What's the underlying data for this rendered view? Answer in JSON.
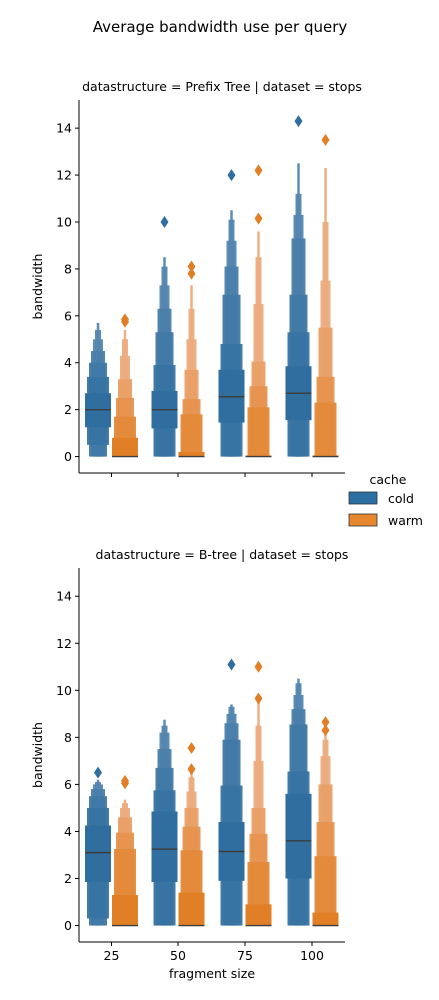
{
  "figure_title": "Average bandwidth use per query",
  "legend": {
    "title": "cache",
    "placement": "right",
    "entries": [
      {
        "label": "cold",
        "color": "#2c6fa3"
      },
      {
        "label": "warm",
        "color": "#e6862d"
      }
    ]
  },
  "colors": {
    "cold_shades": [
      "#2f6e9e",
      "#3874a2",
      "#4179a6",
      "#4a80ab",
      "#5486b0"
    ],
    "warm_shades": [
      "#e07f26",
      "#e3893a",
      "#e6944f",
      "#e9a067",
      "#ecac7e"
    ],
    "median_line": "#3d3d3d"
  },
  "chart_data": [
    {
      "type": "boxen",
      "title": "datastructure = Prefix Tree | dataset = stops",
      "xlabel": "",
      "ylabel": "bandwidth",
      "categories": [
        "25",
        "50",
        "75",
        "100"
      ],
      "show_xtick_labels": false,
      "ylim": [
        -0.7,
        15.2
      ],
      "yticks": [
        0,
        2,
        4,
        6,
        8,
        10,
        12,
        14
      ],
      "grid": false,
      "series": [
        {
          "name": "cold",
          "boxes": [
            {
              "median": 2.0,
              "levels": [
                [
                  1.25,
                  2.7
                ],
                [
                  0.5,
                  3.4
                ],
                [
                  0.0,
                  4.0
                ],
                [
                  0.0,
                  4.5
                ],
                [
                  0.0,
                  5.0
                ],
                [
                  0.0,
                  5.4
                ],
                [
                  0.0,
                  5.7
                ]
              ],
              "outliers": []
            },
            {
              "median": 2.0,
              "levels": [
                [
                  1.2,
                  2.8
                ],
                [
                  0.0,
                  3.9
                ],
                [
                  0.0,
                  5.3
                ],
                [
                  0.0,
                  6.3
                ],
                [
                  0.0,
                  7.3
                ],
                [
                  0.0,
                  8.1
                ],
                [
                  0.0,
                  8.5
                ]
              ],
              "outliers": [
                10.0
              ]
            },
            {
              "median": 2.55,
              "levels": [
                [
                  1.45,
                  3.7
                ],
                [
                  0.0,
                  4.8
                ],
                [
                  0.0,
                  6.9
                ],
                [
                  0.0,
                  8.1
                ],
                [
                  0.0,
                  9.2
                ],
                [
                  0.0,
                  10.1
                ],
                [
                  0.0,
                  10.5
                ]
              ],
              "outliers": [
                12.0
              ]
            },
            {
              "median": 2.7,
              "levels": [
                [
                  1.55,
                  3.85
                ],
                [
                  0.0,
                  5.3
                ],
                [
                  0.0,
                  6.9
                ],
                [
                  0.0,
                  9.3
                ],
                [
                  0.0,
                  10.3
                ],
                [
                  0.0,
                  11.2
                ],
                [
                  0.0,
                  12.5
                ]
              ],
              "outliers": [
                14.3
              ]
            }
          ]
        },
        {
          "name": "warm",
          "boxes": [
            {
              "median": 0.0,
              "levels": [
                [
                  0.0,
                  0.8
                ],
                [
                  0.0,
                  1.7
                ],
                [
                  0.0,
                  2.5
                ],
                [
                  0.0,
                  3.3
                ],
                [
                  0.0,
                  4.3
                ],
                [
                  0.0,
                  5.0
                ],
                [
                  0.0,
                  5.4
                ]
              ],
              "outliers": [
                5.75,
                5.85
              ]
            },
            {
              "median": 0.0,
              "levels": [
                [
                  0.0,
                  0.2
                ],
                [
                  0.0,
                  1.8
                ],
                [
                  0.0,
                  2.45
                ],
                [
                  0.0,
                  3.7
                ],
                [
                  0.0,
                  5.0
                ],
                [
                  0.0,
                  6.3
                ],
                [
                  0.0,
                  7.3
                ]
              ],
              "outliers": [
                7.8,
                8.1
              ]
            },
            {
              "median": 0.0,
              "levels": [
                [
                  0.0,
                  0.05
                ],
                [
                  0.0,
                  2.1
                ],
                [
                  0.0,
                  3.0
                ],
                [
                  0.0,
                  4.05
                ],
                [
                  0.0,
                  6.5
                ],
                [
                  0.0,
                  8.5
                ],
                [
                  0.0,
                  9.6
                ]
              ],
              "outliers": [
                10.15,
                12.2
              ]
            },
            {
              "median": 0.0,
              "levels": [
                [
                  0.0,
                  0.05
                ],
                [
                  0.0,
                  2.3
                ],
                [
                  0.0,
                  3.4
                ],
                [
                  0.0,
                  5.5
                ],
                [
                  0.0,
                  7.5
                ],
                [
                  0.0,
                  10.0
                ],
                [
                  0.0,
                  12.3
                ]
              ],
              "outliers": [
                13.5
              ]
            }
          ]
        }
      ]
    },
    {
      "type": "boxen",
      "title": "datastructure = B-tree | dataset = stops",
      "xlabel": "fragment size",
      "ylabel": "bandwidth",
      "categories": [
        "25",
        "50",
        "75",
        "100"
      ],
      "show_xtick_labels": true,
      "ylim": [
        -0.7,
        15.2
      ],
      "yticks": [
        0,
        2,
        4,
        6,
        8,
        10,
        12,
        14
      ],
      "grid": false,
      "series": [
        {
          "name": "cold",
          "boxes": [
            {
              "median": 3.1,
              "levels": [
                [
                  1.85,
                  4.25
                ],
                [
                  0.3,
                  5.0
                ],
                [
                  0.0,
                  5.5
                ],
                [
                  0.0,
                  5.8
                ],
                [
                  0.0,
                  6.0
                ],
                [
                  0.0,
                  6.1
                ],
                [
                  0.0,
                  6.2
                ]
              ],
              "outliers": [
                6.5
              ]
            },
            {
              "median": 3.25,
              "levels": [
                [
                  1.85,
                  4.85
                ],
                [
                  0.0,
                  5.75
                ],
                [
                  0.0,
                  6.7
                ],
                [
                  0.0,
                  7.5
                ],
                [
                  0.0,
                  8.2
                ],
                [
                  0.0,
                  8.5
                ],
                [
                  0.0,
                  8.75
                ]
              ],
              "outliers": []
            },
            {
              "median": 3.15,
              "levels": [
                [
                  1.9,
                  4.4
                ],
                [
                  0.0,
                  5.95
                ],
                [
                  0.0,
                  7.9
                ],
                [
                  0.0,
                  8.6
                ],
                [
                  0.0,
                  9.0
                ],
                [
                  0.0,
                  9.3
                ],
                [
                  0.0,
                  9.4
                ]
              ],
              "outliers": [
                11.1
              ]
            },
            {
              "median": 3.6,
              "levels": [
                [
                  2.0,
                  5.6
                ],
                [
                  0.0,
                  6.55
                ],
                [
                  0.0,
                  8.55
                ],
                [
                  0.0,
                  9.2
                ],
                [
                  0.0,
                  9.8
                ],
                [
                  0.0,
                  10.3
                ],
                [
                  0.0,
                  10.5
                ]
              ],
              "outliers": []
            }
          ]
        },
        {
          "name": "warm",
          "boxes": [
            {
              "median": 0.0,
              "levels": [
                [
                  0.0,
                  1.3
                ],
                [
                  0.0,
                  3.25
                ],
                [
                  0.0,
                  3.95
                ],
                [
                  0.0,
                  4.6
                ],
                [
                  0.0,
                  5.0
                ],
                [
                  0.0,
                  5.2
                ],
                [
                  0.0,
                  5.35
                ]
              ],
              "outliers": [
                6.05,
                6.15
              ]
            },
            {
              "median": 0.0,
              "levels": [
                [
                  0.0,
                  1.4
                ],
                [
                  0.0,
                  3.2
                ],
                [
                  0.0,
                  4.2
                ],
                [
                  0.0,
                  5.0
                ],
                [
                  0.0,
                  5.7
                ],
                [
                  0.0,
                  6.3
                ],
                [
                  0.0,
                  6.5
                ]
              ],
              "outliers": [
                6.65,
                7.55
              ]
            },
            {
              "median": 0.0,
              "levels": [
                [
                  0.0,
                  0.9
                ],
                [
                  0.0,
                  2.7
                ],
                [
                  0.0,
                  3.9
                ],
                [
                  0.0,
                  5.0
                ],
                [
                  0.0,
                  7.0
                ],
                [
                  0.0,
                  8.5
                ],
                [
                  0.0,
                  9.6
                ]
              ],
              "outliers": [
                9.65,
                11.0
              ]
            },
            {
              "median": 0.0,
              "levels": [
                [
                  0.0,
                  0.55
                ],
                [
                  0.0,
                  2.95
                ],
                [
                  0.0,
                  4.4
                ],
                [
                  0.0,
                  6.0
                ],
                [
                  0.0,
                  7.2
                ],
                [
                  0.0,
                  7.9
                ],
                [
                  0.0,
                  8.4
                ]
              ],
              "outliers": [
                8.3,
                8.65
              ]
            }
          ]
        }
      ]
    }
  ]
}
